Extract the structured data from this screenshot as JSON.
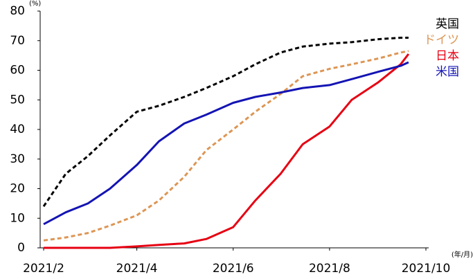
{
  "chart_data": {
    "type": "line",
    "y_unit": "(%)",
    "x_unit": "(年/月)",
    "x": [
      "2021-02-01",
      "2021-02-15",
      "2021-03-01",
      "2021-03-15",
      "2021-04-01",
      "2021-04-15",
      "2021-05-01",
      "2021-05-15",
      "2021-06-01",
      "2021-06-15",
      "2021-07-01",
      "2021-07-15",
      "2021-08-01",
      "2021-08-15",
      "2021-09-01",
      "2021-09-15",
      "2021-09-20"
    ],
    "series": [
      {
        "name": "英国",
        "color": "#000000",
        "dash": true,
        "values": [
          14,
          25,
          31,
          38,
          46,
          48,
          51,
          54,
          58,
          62,
          66,
          68,
          69,
          69.5,
          70.5,
          71,
          71
        ]
      },
      {
        "name": "ドイツ",
        "color": "#dd9655",
        "dash": true,
        "values": [
          2.5,
          3.5,
          5,
          7.5,
          11,
          16,
          24,
          33,
          40,
          46,
          52,
          58,
          60.5,
          62,
          64,
          66,
          66.5
        ]
      },
      {
        "name": "日本",
        "color": "#e60012",
        "dash": false,
        "values": [
          0,
          0,
          0,
          0,
          0.5,
          1,
          1.5,
          3,
          7,
          16,
          25,
          35,
          41,
          50,
          56,
          62,
          65.5
        ]
      },
      {
        "name": "米国",
        "color": "#1414b4",
        "dash": false,
        "values": [
          8,
          12,
          15,
          20,
          28,
          36,
          42,
          45,
          49,
          51,
          52.5,
          54,
          55,
          57,
          59.5,
          61.5,
          62.7
        ]
      }
    ],
    "xlim": [
      "2021-02-01",
      "2021-10-01"
    ],
    "xticks": [
      {
        "value": "2021-02-01",
        "label": "2021/2"
      },
      {
        "value": "2021-04-01",
        "label": "2021/4"
      },
      {
        "value": "2021-06-01",
        "label": "2021/6"
      },
      {
        "value": "2021-08-01",
        "label": "2021/8"
      },
      {
        "value": "2021-10-01",
        "label": "2021/10"
      }
    ],
    "ylim": [
      0,
      80
    ],
    "yticks": [
      0,
      10,
      20,
      30,
      40,
      50,
      60,
      70,
      80
    ],
    "grid": false
  }
}
